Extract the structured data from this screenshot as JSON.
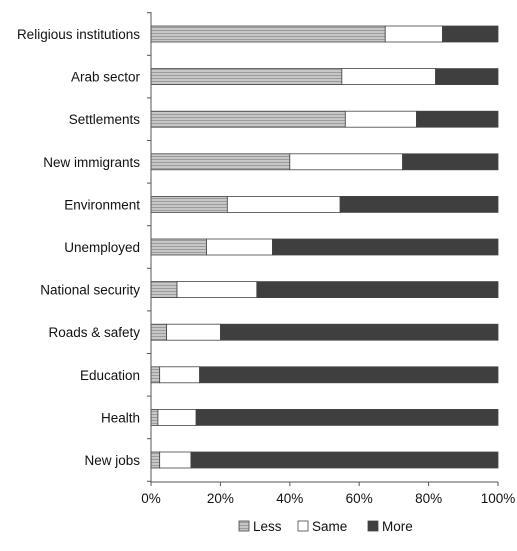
{
  "chart_data": {
    "type": "bar",
    "orientation": "horizontal",
    "stacked": true,
    "percent_scale": true,
    "categories": [
      "Religious institutions",
      "Arab sector",
      "Settlements",
      "New immigrants",
      "Environment",
      "Unemployed",
      "National security",
      "Roads & safety",
      "Education",
      "Health",
      "New jobs"
    ],
    "series": [
      {
        "name": "Less",
        "color": "#bdbdbd",
        "pattern": "fine-horizontal-lines",
        "values": [
          67.5,
          55,
          56,
          40,
          22,
          16,
          7.5,
          4.5,
          2.5,
          2,
          2.5
        ]
      },
      {
        "name": "Same",
        "color": "#ffffff",
        "values": [
          16.5,
          27,
          20.5,
          32.5,
          32.5,
          19,
          23,
          15.5,
          11.5,
          11,
          9
        ]
      },
      {
        "name": "More",
        "color": "#3f3f3f",
        "values": [
          16,
          18,
          23.5,
          27.5,
          45.5,
          65,
          69.5,
          80,
          86,
          87,
          88.5
        ]
      }
    ],
    "x_ticks": [
      "0%",
      "20%",
      "40%",
      "60%",
      "80%",
      "100%"
    ],
    "xlim": [
      0,
      100
    ],
    "grid": false,
    "legend": {
      "position": "bottom",
      "entries": [
        "Less",
        "Same",
        "More"
      ]
    },
    "title": "",
    "xlabel": "",
    "ylabel": ""
  }
}
